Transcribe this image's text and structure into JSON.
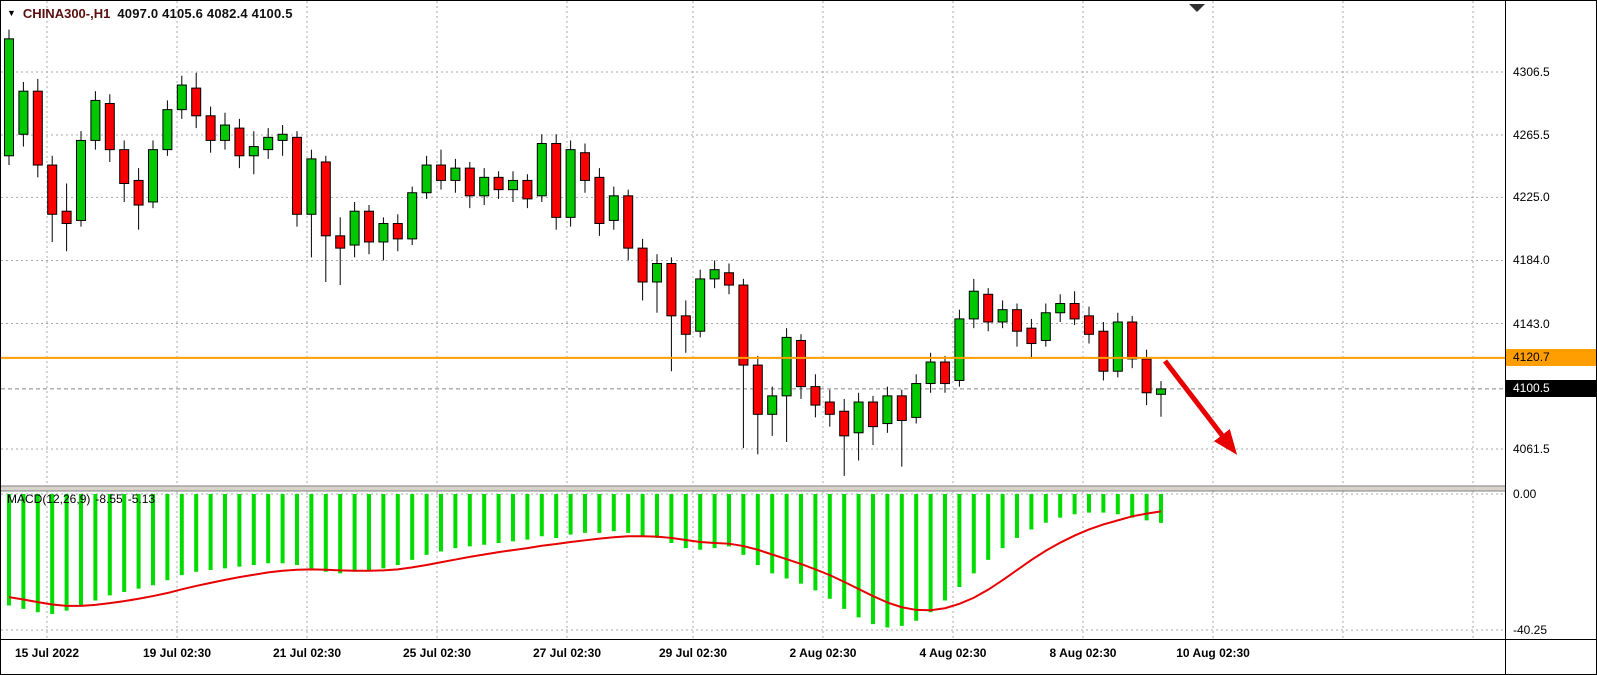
{
  "header": {
    "symbol": "CHINA300-,H1",
    "ohlc": "4097.0 4105.6 4082.4 4100.5"
  },
  "indicator": {
    "name": "MACD(12,26,9)",
    "value_macd": "-8.55",
    "value_signal": "-5.13",
    "axis_top": "0.00",
    "axis_bottom": "-40.25"
  },
  "price_axis": {
    "hline_label": "4120.7",
    "current_label": "4100.5"
  },
  "colors": {
    "symbol_text": "#5a0f0f",
    "axis_text": "#000000",
    "grid": "#aaaaaa",
    "bull": "#00c800",
    "bear": "#fa0000",
    "wick": "#000000",
    "hline": "#ff9e00",
    "current_price_line": "#888888",
    "current_price_badge_bg": "#000000",
    "current_price_badge_fg": "#ffffff",
    "macd_bar": "#00dc00",
    "macd_signal": "#e80000",
    "arrow": "#e80000",
    "separator": "#d8d4cc",
    "separator_edge": "#808080",
    "shift_marker": "#303030"
  },
  "chart_data": {
    "type": "candlestick",
    "symbol": "CHINA300-",
    "timeframe": "H1",
    "title": "CHINA300- H1 with MACD(12,26,9)",
    "ylim_main": [
      4036,
      4353
    ],
    "price_gridlines": [
      4306.5,
      4265.5,
      4225.0,
      4184.0,
      4143.0,
      4061.5
    ],
    "hline": 4120.7,
    "current_price": 4100.5,
    "ohlc_current": {
      "open": 4097.0,
      "high": 4105.6,
      "low": 4082.4,
      "close": 4100.5
    },
    "time_labels": [
      "15 Jul 2022",
      "19 Jul 02:30",
      "21 Jul 02:30",
      "25 Jul 02:30",
      "27 Jul 02:30",
      "29 Jul 02:30",
      "2 Aug 02:30",
      "4 Aug 02:30",
      "8 Aug 02:30",
      "10 Aug 02:30"
    ],
    "candles": [
      [
        4252,
        4334,
        4246,
        4328
      ],
      [
        4266,
        4300,
        4258,
        4294
      ],
      [
        4294,
        4302,
        4238,
        4246
      ],
      [
        4246,
        4252,
        4196,
        4214
      ],
      [
        4216,
        4234,
        4190,
        4208
      ],
      [
        4210,
        4268,
        4206,
        4262
      ],
      [
        4262,
        4294,
        4256,
        4288
      ],
      [
        4286,
        4292,
        4248,
        4256
      ],
      [
        4256,
        4262,
        4222,
        4234
      ],
      [
        4236,
        4244,
        4204,
        4220
      ],
      [
        4222,
        4262,
        4218,
        4256
      ],
      [
        4256,
        4288,
        4252,
        4282
      ],
      [
        4282,
        4304,
        4276,
        4298
      ],
      [
        4296,
        4306,
        4270,
        4278
      ],
      [
        4278,
        4284,
        4254,
        4262
      ],
      [
        4262,
        4280,
        4256,
        4272
      ],
      [
        4270,
        4276,
        4244,
        4252
      ],
      [
        4252,
        4268,
        4240,
        4258
      ],
      [
        4256,
        4270,
        4250,
        4264
      ],
      [
        4262,
        4272,
        4252,
        4266
      ],
      [
        4264,
        4268,
        4206,
        4214
      ],
      [
        4214,
        4256,
        4186,
        4250
      ],
      [
        4248,
        4252,
        4170,
        4200
      ],
      [
        4200,
        4212,
        4168,
        4192
      ],
      [
        4194,
        4222,
        4186,
        4216
      ],
      [
        4216,
        4220,
        4188,
        4196
      ],
      [
        4196,
        4212,
        4184,
        4208
      ],
      [
        4208,
        4214,
        4190,
        4198
      ],
      [
        4198,
        4232,
        4194,
        4228
      ],
      [
        4228,
        4252,
        4224,
        4246
      ],
      [
        4246,
        4256,
        4230,
        4236
      ],
      [
        4236,
        4250,
        4228,
        4244
      ],
      [
        4244,
        4248,
        4218,
        4226
      ],
      [
        4226,
        4244,
        4220,
        4238
      ],
      [
        4238,
        4242,
        4224,
        4230
      ],
      [
        4230,
        4242,
        4222,
        4236
      ],
      [
        4236,
        4240,
        4218,
        4224
      ],
      [
        4226,
        4266,
        4222,
        4260
      ],
      [
        4260,
        4266,
        4204,
        4212
      ],
      [
        4212,
        4262,
        4206,
        4256
      ],
      [
        4254,
        4260,
        4228,
        4236
      ],
      [
        4238,
        4244,
        4200,
        4208
      ],
      [
        4210,
        4232,
        4204,
        4226
      ],
      [
        4226,
        4230,
        4184,
        4192
      ],
      [
        4192,
        4198,
        4158,
        4170
      ],
      [
        4170,
        4188,
        4150,
        4182
      ],
      [
        4182,
        4186,
        4112,
        4148
      ],
      [
        4148,
        4158,
        4124,
        4136
      ],
      [
        4138,
        4178,
        4134,
        4172
      ],
      [
        4172,
        4184,
        4166,
        4178
      ],
      [
        4176,
        4182,
        4162,
        4168
      ],
      [
        4168,
        4172,
        4062,
        4116
      ],
      [
        4116,
        4122,
        4058,
        4084
      ],
      [
        4084,
        4102,
        4070,
        4096
      ],
      [
        4096,
        4140,
        4066,
        4134
      ],
      [
        4132,
        4136,
        4094,
        4102
      ],
      [
        4102,
        4110,
        4082,
        4090
      ],
      [
        4092,
        4100,
        4076,
        4084
      ],
      [
        4086,
        4094,
        4044,
        4070
      ],
      [
        4072,
        4098,
        4054,
        4092
      ],
      [
        4092,
        4096,
        4064,
        4076
      ],
      [
        4078,
        4102,
        4072,
        4096
      ],
      [
        4096,
        4100,
        4050,
        4080
      ],
      [
        4082,
        4110,
        4078,
        4104
      ],
      [
        4104,
        4124,
        4098,
        4118
      ],
      [
        4118,
        4122,
        4098,
        4104
      ],
      [
        4106,
        4152,
        4102,
        4146
      ],
      [
        4146,
        4172,
        4140,
        4164
      ],
      [
        4162,
        4166,
        4138,
        4144
      ],
      [
        4144,
        4158,
        4140,
        4152
      ],
      [
        4152,
        4156,
        4128,
        4138
      ],
      [
        4140,
        4146,
        4120,
        4130
      ],
      [
        4132,
        4156,
        4128,
        4150
      ],
      [
        4150,
        4162,
        4144,
        4156
      ],
      [
        4156,
        4164,
        4142,
        4146
      ],
      [
        4148,
        4154,
        4130,
        4136
      ],
      [
        4138,
        4144,
        4106,
        4112
      ],
      [
        4112,
        4150,
        4108,
        4144
      ],
      [
        4144,
        4148,
        4114,
        4120
      ],
      [
        4120,
        4126,
        4090,
        4098
      ],
      [
        4097.0,
        4105.6,
        4082.4,
        4100.5
      ]
    ],
    "macd": {
      "name": "MACD(12,26,9)",
      "axis": [
        0,
        -40.25
      ],
      "histogram": [
        -33,
        -34,
        -35,
        -35.5,
        -34.5,
        -33,
        -31.5,
        -30,
        -29,
        -28,
        -27,
        -25.5,
        -24,
        -23,
        -22.5,
        -22,
        -21.5,
        -21,
        -20.5,
        -20.5,
        -21,
        -22,
        -23,
        -23.5,
        -23,
        -22.5,
        -22,
        -21,
        -19.5,
        -18,
        -17,
        -16,
        -15.5,
        -15,
        -14.5,
        -14,
        -13.5,
        -12.5,
        -13,
        -12,
        -11.5,
        -11.5,
        -11,
        -11.5,
        -12.5,
        -13,
        -14.5,
        -16,
        -16.5,
        -16,
        -15.5,
        -18,
        -21,
        -23.5,
        -25,
        -26.5,
        -28.5,
        -31,
        -34,
        -36.5,
        -38.5,
        -39.5,
        -39,
        -37.5,
        -35,
        -31.5,
        -27.5,
        -23.5,
        -19.5,
        -16,
        -13,
        -10.5,
        -8.5,
        -7,
        -6,
        -5.5,
        -5.5,
        -6,
        -7,
        -7.8,
        -8.55
      ],
      "signal": [
        -30.5,
        -31.2,
        -32,
        -32.7,
        -33.1,
        -33.1,
        -32.8,
        -32.3,
        -31.7,
        -31,
        -30.2,
        -29.3,
        -28.2,
        -27.2,
        -26.3,
        -25.4,
        -24.6,
        -23.9,
        -23.2,
        -22.7,
        -22.4,
        -22.3,
        -22.4,
        -22.6,
        -22.7,
        -22.7,
        -22.6,
        -22.3,
        -21.7,
        -21,
        -20.2,
        -19.4,
        -18.6,
        -17.9,
        -17.2,
        -16.6,
        -16,
        -15.3,
        -14.8,
        -14.2,
        -13.7,
        -13.2,
        -12.8,
        -12.5,
        -12.5,
        -12.6,
        -13,
        -13.6,
        -14.2,
        -14.5,
        -14.7,
        -15.4,
        -16.5,
        -17.9,
        -19.3,
        -20.7,
        -22.3,
        -24,
        -26,
        -28.1,
        -30.2,
        -32.1,
        -33.5,
        -34.3,
        -34.4,
        -33.8,
        -32.5,
        -30.7,
        -28.3,
        -25.5,
        -22.5,
        -19.5,
        -16.8,
        -14.4,
        -12.3,
        -10.5,
        -9,
        -7.8,
        -6.6,
        -5.8,
        -5.13
      ]
    }
  }
}
